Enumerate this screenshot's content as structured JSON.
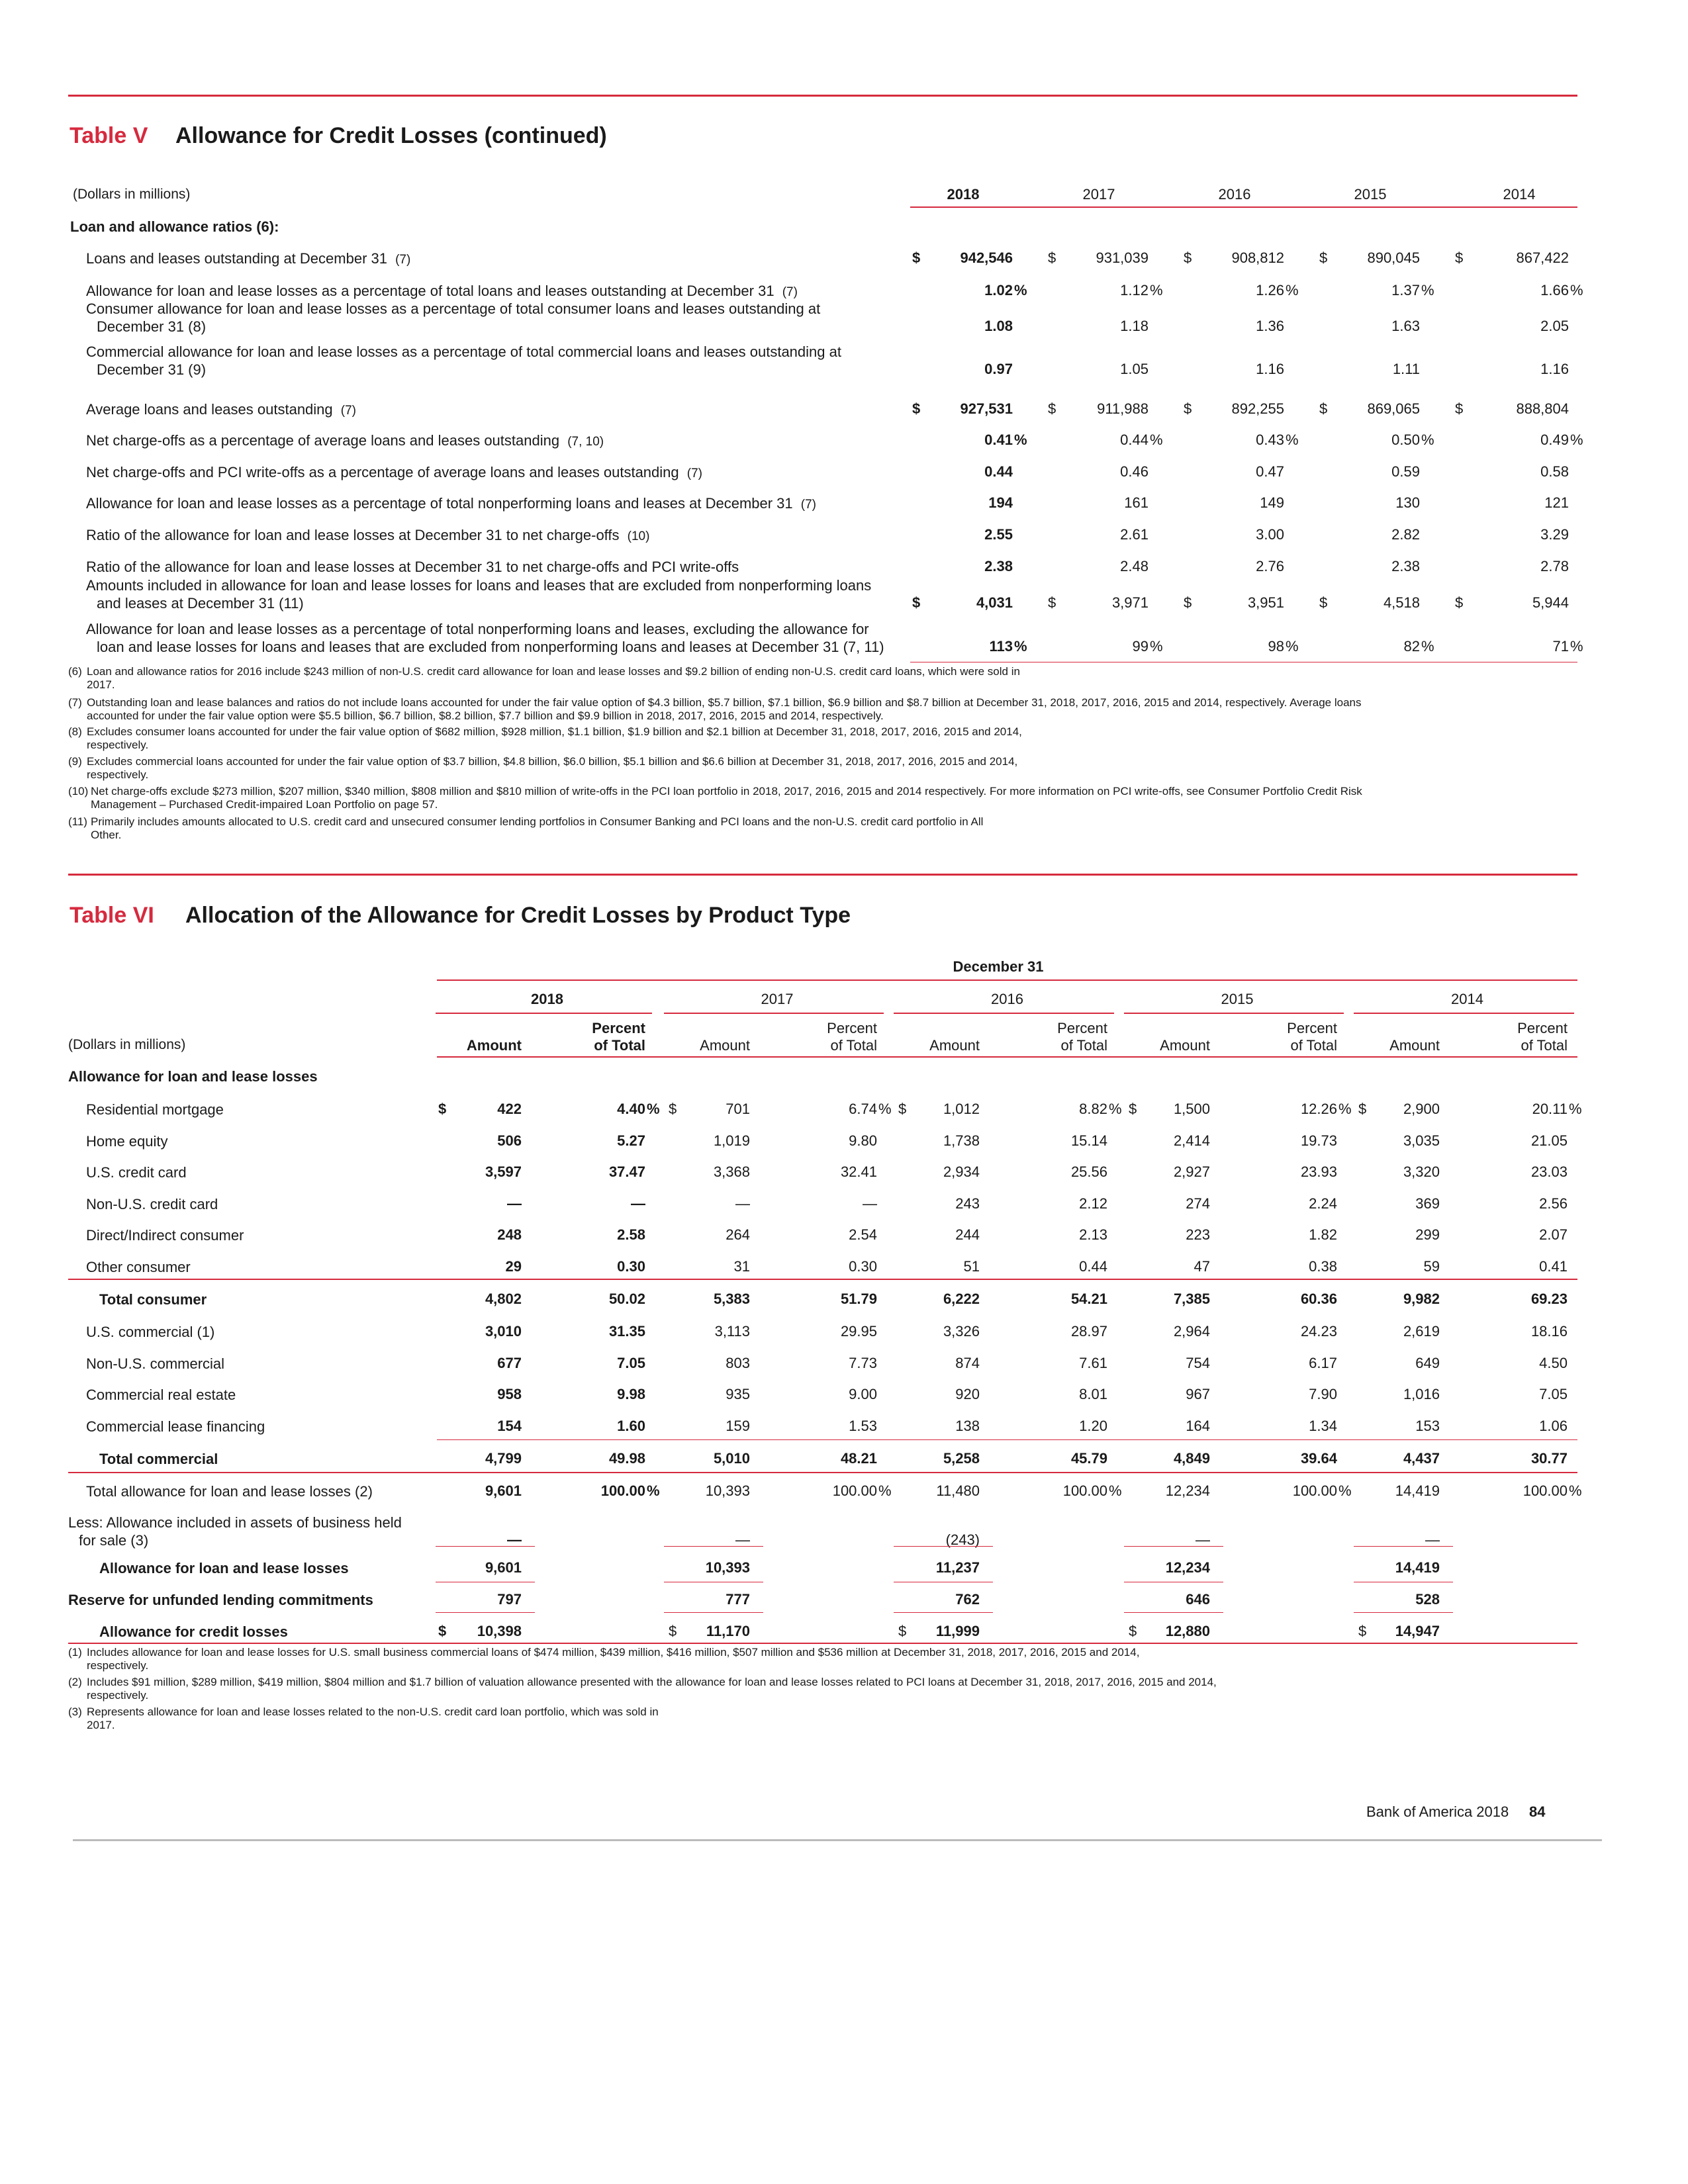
{
  "table5": {
    "label": "Table V",
    "title": "Allowance for Credit Losses (continued)",
    "unit_label": "(Dollars in millions)",
    "years": [
      "2018",
      "2017",
      "2016",
      "2015",
      "2014"
    ],
    "section_heading": "Loan and allowance ratios",
    "section_note": "(6):",
    "rows": [
      {
        "label": "Loans and leases outstanding at December 31",
        "note": "(7)",
        "dollar": true,
        "values": [
          "942,546",
          "931,039",
          "908,812",
          "890,045",
          "867,422"
        ],
        "suffix": ""
      },
      {
        "label": "Allowance for loan and lease losses as a percentage of total loans and leases outstanding at December 31",
        "note": "(7)",
        "values": [
          "1.02",
          "1.12",
          "1.26",
          "1.37",
          "1.66"
        ],
        "suffix": "%"
      },
      {
        "label": "Consumer allowance for loan and lease losses as a percentage of total consumer loans and leases outstanding at",
        "label2": "December 31 (8)",
        "values": [
          "1.08",
          "1.18",
          "1.36",
          "1.63",
          "2.05"
        ],
        "suffix": ""
      },
      {
        "label": "Commercial allowance for loan and lease losses as a percentage of total commercial loans and leases outstanding at",
        "label2": "December 31 (9)",
        "values": [
          "0.97",
          "1.05",
          "1.16",
          "1.11",
          "1.16"
        ],
        "suffix": ""
      },
      {
        "label": "Average loans and leases outstanding",
        "note": "(7)",
        "dollar": true,
        "values": [
          "927,531",
          "911,988",
          "892,255",
          "869,065",
          "888,804"
        ],
        "suffix": ""
      },
      {
        "label": "Net charge-offs as a percentage of average loans and leases outstanding",
        "note": "(7, 10)",
        "values": [
          "0.41",
          "0.44",
          "0.43",
          "0.50",
          "0.49"
        ],
        "suffix": "%"
      },
      {
        "label": "Net charge-offs and PCI write-offs as a percentage of average loans and leases outstanding",
        "note": "(7)",
        "values": [
          "0.44",
          "0.46",
          "0.47",
          "0.59",
          "0.58"
        ],
        "suffix": ""
      },
      {
        "label": "Allowance for loan and lease losses as a percentage of total nonperforming loans and leases at December 31",
        "note": "(7)",
        "values": [
          "194",
          "161",
          "149",
          "130",
          "121"
        ],
        "suffix": ""
      },
      {
        "label": "Ratio of the allowance for loan and lease losses at December 31 to net charge-offs",
        "note": "(10)",
        "values": [
          "2.55",
          "2.61",
          "3.00",
          "2.82",
          "3.29"
        ],
        "suffix": ""
      },
      {
        "label": "Ratio of the allowance for loan and lease losses at December 31 to net charge-offs and PCI write-offs",
        "note": "",
        "values": [
          "2.38",
          "2.48",
          "2.76",
          "2.38",
          "2.78"
        ],
        "suffix": ""
      },
      {
        "label": "Amounts included in allowance for loan and lease losses for loans and leases that are excluded from nonperforming loans",
        "label2": "and leases at December 31 (11)",
        "dollar": true,
        "values": [
          "4,031",
          "3,971",
          "3,951",
          "4,518",
          "5,944"
        ],
        "suffix": ""
      },
      {
        "label": "Allowance for loan and lease losses as a percentage of total nonperforming loans and leases, excluding the allowance for",
        "label2": "loan and lease losses for loans and leases that are excluded from nonperforming loans and leases at December 31 (7, 11)",
        "values": [
          "113",
          "99",
          "98",
          "82",
          "71"
        ],
        "suffix": "%"
      }
    ],
    "footnotes": [
      {
        "mark": "(6)",
        "lines": [
          "Loan and allowance ratios for 2016 include $243 million of non-U.S. credit card allowance for loan and lease losses and $9.2 billion of ending non-U.S. credit card loans, which were sold in",
          "2017."
        ]
      },
      {
        "mark": "(7)",
        "lines": [
          "Outstanding loan and lease balances and ratios do not include loans accounted for under the fair value option of $4.3 billion, $5.7 billion, $7.1 billion, $6.9 billion and $8.7 billion at December 31, 2018, 2017, 2016, 2015 and 2014, respectively. Average loans",
          "accounted for under the fair value option were $5.5 billion, $6.7 billion, $8.2 billion, $7.7 billion and $9.9 billion in 2018, 2017, 2016, 2015 and 2014, respectively."
        ]
      },
      {
        "mark": "(8)",
        "lines": [
          "Excludes consumer loans accounted for under the fair value option of $682 million, $928 million, $1.1 billion, $1.9 billion and $2.1 billion at December 31, 2018, 2017, 2016, 2015 and 2014,",
          "respectively."
        ]
      },
      {
        "mark": "(9)",
        "lines": [
          "Excludes commercial loans accounted for under the fair value option of $3.7 billion, $4.8 billion, $6.0 billion, $5.1 billion and $6.6 billion at December 31, 2018, 2017, 2016, 2015 and 2014,",
          "respectively."
        ]
      },
      {
        "mark": "(10)",
        "lines": [
          "Net charge-offs exclude $273 million, $207 million, $340 million, $808 million and $810 million of write-offs in the PCI loan portfolio in 2018, 2017, 2016, 2015 and 2014 respectively. For more information on PCI write-offs, see Consumer Portfolio Credit Risk",
          "Management – Purchased Credit-impaired Loan Portfolio on page 57."
        ]
      },
      {
        "mark": "(11)",
        "lines": [
          "Primarily includes amounts allocated to U.S. credit card and unsecured consumer lending portfolios in Consumer Banking and PCI loans and the non-U.S. credit card portfolio in All",
          "Other."
        ]
      }
    ]
  },
  "table6": {
    "label": "Table VI",
    "title": "Allocation of the Allowance for Credit Losses by Product Type",
    "period": "December 31",
    "unit_label": "(Dollars in millions)",
    "years": [
      "2018",
      "2017",
      "2016",
      "2015",
      "2014"
    ],
    "col_amount": "Amount",
    "col_pct_1": "Percent",
    "col_pct_2": "of Total",
    "section_heading": "Allowance for loan and lease losses",
    "rows": [
      {
        "label": "Residential mortgage",
        "dollar": true,
        "amounts": [
          "422",
          "701",
          "1,012",
          "1,500",
          "2,900"
        ],
        "pcts": [
          "4.40",
          "6.74",
          "8.82",
          "12.26",
          "20.11"
        ],
        "pct_suffix": "%"
      },
      {
        "label": "Home equity",
        "amounts": [
          "506",
          "1,019",
          "1,738",
          "2,414",
          "3,035"
        ],
        "pcts": [
          "5.27",
          "9.80",
          "15.14",
          "19.73",
          "21.05"
        ]
      },
      {
        "label": "U.S. credit card",
        "amounts": [
          "3,597",
          "3,368",
          "2,934",
          "2,927",
          "3,320"
        ],
        "pcts": [
          "37.47",
          "32.41",
          "25.56",
          "23.93",
          "23.03"
        ]
      },
      {
        "label": "Non-U.S. credit card",
        "amounts": [
          "—",
          "—",
          "243",
          "274",
          "369"
        ],
        "pcts": [
          "—",
          "—",
          "2.12",
          "2.24",
          "2.56"
        ]
      },
      {
        "label": "Direct/Indirect consumer",
        "amounts": [
          "248",
          "264",
          "244",
          "223",
          "299"
        ],
        "pcts": [
          "2.58",
          "2.54",
          "2.13",
          "1.82",
          "2.07"
        ]
      },
      {
        "label": "Other consumer",
        "amounts": [
          "29",
          "31",
          "51",
          "47",
          "59"
        ],
        "pcts": [
          "0.30",
          "0.30",
          "0.44",
          "0.38",
          "0.41"
        ]
      },
      {
        "label": "Total consumer",
        "bold": true,
        "amounts": [
          "4,802",
          "5,383",
          "6,222",
          "7,385",
          "9,982"
        ],
        "pcts": [
          "50.02",
          "51.79",
          "54.21",
          "60.36",
          "69.23"
        ]
      },
      {
        "label": "U.S. commercial (1)",
        "amounts": [
          "3,010",
          "3,113",
          "3,326",
          "2,964",
          "2,619"
        ],
        "pcts": [
          "31.35",
          "29.95",
          "28.97",
          "24.23",
          "18.16"
        ]
      },
      {
        "label": "Non-U.S. commercial",
        "amounts": [
          "677",
          "803",
          "874",
          "754",
          "649"
        ],
        "pcts": [
          "7.05",
          "7.73",
          "7.61",
          "6.17",
          "4.50"
        ]
      },
      {
        "label": "Commercial real estate",
        "amounts": [
          "958",
          "935",
          "920",
          "967",
          "1,016"
        ],
        "pcts": [
          "9.98",
          "9.00",
          "8.01",
          "7.90",
          "7.05"
        ]
      },
      {
        "label": "Commercial lease financing",
        "amounts": [
          "154",
          "159",
          "138",
          "164",
          "153"
        ],
        "pcts": [
          "1.60",
          "1.53",
          "1.20",
          "1.34",
          "1.06"
        ]
      },
      {
        "label": "Total commercial",
        "bold": true,
        "amounts": [
          "4,799",
          "5,010",
          "5,258",
          "4,849",
          "4,437"
        ],
        "pcts": [
          "49.98",
          "48.21",
          "45.79",
          "39.64",
          "30.77"
        ]
      },
      {
        "label": "Total allowance for loan and lease losses (2)",
        "amounts": [
          "9,601",
          "10,393",
          "11,480",
          "12,234",
          "14,419"
        ],
        "pcts": [
          "100.00",
          "100.00",
          "100.00",
          "100.00",
          "100.00"
        ],
        "pct_suffix": "%"
      },
      {
        "label": "Less: Allowance included in assets of business held",
        "label2": "for sale (3)",
        "amounts": [
          "—",
          "—",
          "(243)",
          "—",
          "—"
        ]
      },
      {
        "label": "Allowance for loan and lease losses",
        "bold": true,
        "amounts": [
          "9,601",
          "10,393",
          "11,237",
          "12,234",
          "14,419"
        ]
      },
      {
        "label": "Reserve for unfunded lending commitments",
        "bold": true,
        "amounts": [
          "797",
          "777",
          "762",
          "646",
          "528"
        ]
      },
      {
        "label": "Allowance for credit losses",
        "bold": true,
        "dollar": true,
        "amounts": [
          "10,398",
          "11,170",
          "11,999",
          "12,880",
          "14,947"
        ]
      }
    ],
    "footnotes": [
      {
        "mark": "(1)",
        "lines": [
          "Includes allowance for loan and lease losses for U.S. small business commercial loans of $474 million, $439 million, $416 million, $507 million and $536 million at December 31, 2018, 2017, 2016, 2015 and 2014,",
          "respectively."
        ]
      },
      {
        "mark": "(2)",
        "lines": [
          "Includes $91 million, $289 million, $419 million, $804 million and $1.7 billion of valuation allowance presented with the allowance for loan and lease losses related to PCI loans at December 31, 2018, 2017, 2016, 2015 and 2014,",
          "respectively."
        ]
      },
      {
        "mark": "(3)",
        "lines": [
          "Represents allowance for loan and lease losses related to the non-U.S. credit card loan portfolio, which was sold in",
          "2017."
        ]
      }
    ]
  },
  "footer": {
    "company": "Bank of America 2018",
    "page": "84"
  },
  "colors": {
    "accent": "#d62a3e",
    "text": "#1a1a1a",
    "rule_grey": "#bbbbbb"
  }
}
